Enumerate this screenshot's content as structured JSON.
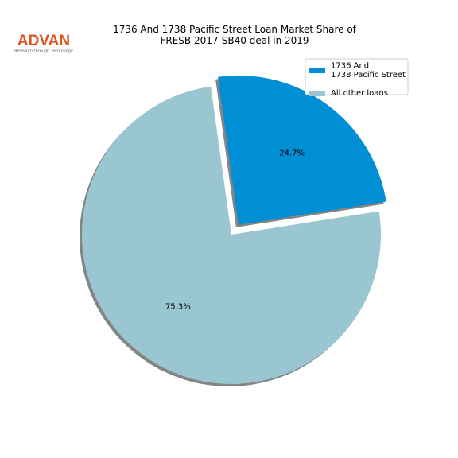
{
  "logo": {
    "name": "ADVAN",
    "tagline": "Research through Technology"
  },
  "chart_data": {
    "type": "pie",
    "title": "1736 And 1738 Pacific Street Loan Market Share of\nFRESB 2017-SB40 deal in 2019",
    "series": [
      {
        "name": "1736 And\n1738 Pacific Street",
        "color": "#008fd5",
        "values": [
          24.7
        ],
        "value_labels": [
          "24.7%"
        ],
        "exploded": true
      },
      {
        "name": "All other loans",
        "color": "#99c6d0",
        "values": [
          75.3
        ],
        "value_labels": [
          "75.3%"
        ],
        "exploded": false
      }
    ],
    "start_angle": 9,
    "shadow": true,
    "legend": "upper right"
  }
}
